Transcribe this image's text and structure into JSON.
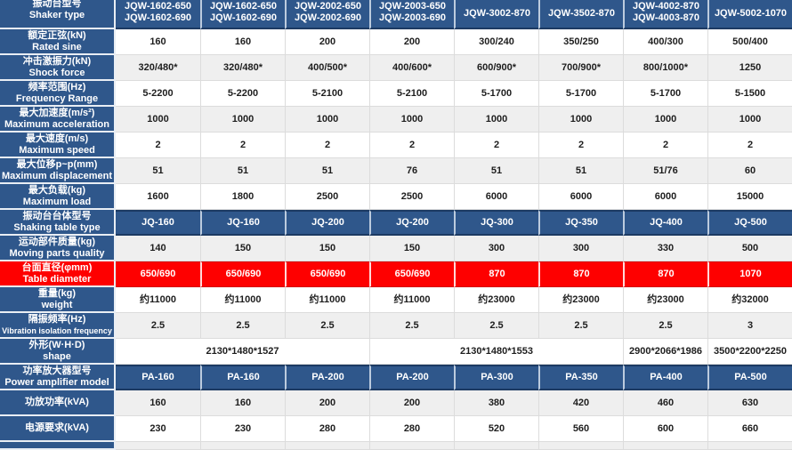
{
  "colors": {
    "steel_blue": "#2F578B",
    "dark_navy": "#1C3A63",
    "blue_divider": "#BCCBDE",
    "left_divider": "#E9EEF4",
    "red": "#FE0000",
    "row_gray": "#EFEFEF",
    "grid_line": "#DCDCDC",
    "text_dark": "#1E1E1E"
  },
  "header": {
    "label_cn": "振动台型号",
    "label_en": "Shaker type",
    "models": [
      [
        "JQW-1602-650",
        "JQW-1602-690"
      ],
      [
        "JQW-1602-650",
        "JQW-1602-690"
      ],
      [
        "JQW-2002-650",
        "JQW-2002-690"
      ],
      [
        "JQW-2003-650",
        "JQW-2003-690"
      ],
      [
        "JQW-3002-870"
      ],
      [
        "JQW-3502-870"
      ],
      [
        "JQW-4002-870",
        "JQW-4003-870"
      ],
      [
        "JQW-5002-1070"
      ]
    ]
  },
  "rows": [
    {
      "cn": "额定正弦(kN)",
      "en": "Rated sine",
      "style": "light",
      "cells": [
        "160",
        "160",
        "200",
        "200",
        "300/240",
        "350/250",
        "400/300",
        "500/400"
      ]
    },
    {
      "cn": "冲击激振力(kN)",
      "en": "Shock force",
      "style": "gray",
      "cells": [
        "320/480*",
        "320/480*",
        "400/500*",
        "400/600*",
        "600/900*",
        "700/900*",
        "800/1000*",
        "1250"
      ]
    },
    {
      "cn": "频率范围(Hz)",
      "en": "Frequency Range",
      "style": "light",
      "cells": [
        "5-2200",
        "5-2200",
        "5-2100",
        "5-2100",
        "5-1700",
        "5-1700",
        "5-1700",
        "5-1500"
      ]
    },
    {
      "cn": "最大加速度(m/s²)",
      "en": "Maximum acceleration",
      "style": "gray",
      "cells": [
        "1000",
        "1000",
        "1000",
        "1000",
        "1000",
        "1000",
        "1000",
        "1000"
      ]
    },
    {
      "cn": "最大速度(m/s)",
      "en": "Maximum speed",
      "style": "light",
      "cells": [
        "2",
        "2",
        "2",
        "2",
        "2",
        "2",
        "2",
        "2"
      ]
    },
    {
      "cn": "最大位移p~p(mm)",
      "en": "Maximum displacement",
      "style": "gray",
      "cells": [
        "51",
        "51",
        "51",
        "76",
        "51",
        "51",
        "51/76",
        "60"
      ]
    },
    {
      "cn": "最大负载(kg)",
      "en": "Maximum load",
      "style": "light",
      "cells": [
        "1600",
        "1800",
        "2500",
        "2500",
        "6000",
        "6000",
        "6000",
        "15000"
      ]
    },
    {
      "cn": "振动台台体型号",
      "en": "Shaking table type",
      "style": "blue",
      "cells": [
        "JQ-160",
        "JQ-160",
        "JQ-200",
        "JQ-200",
        "JQ-300",
        "JQ-350",
        "JQ-400",
        "JQ-500"
      ]
    },
    {
      "cn": "运动部件质量(kg)",
      "en": "Moving parts quality",
      "style": "gray",
      "cells": [
        "140",
        "150",
        "150",
        "150",
        "300",
        "300",
        "330",
        "500"
      ]
    },
    {
      "cn": "台面直径(φmm)",
      "en": "Table diameter",
      "style": "red",
      "cells": [
        "650/690",
        "650/690",
        "650/690",
        "650/690",
        "870",
        "870",
        "870",
        "1070"
      ]
    },
    {
      "cn": "重量(kg)",
      "en": "weight",
      "style": "light",
      "cells": [
        "约11000",
        "约11000",
        "约11000",
        "约11000",
        "约23000",
        "约23000",
        "约23000",
        "约32000"
      ]
    },
    {
      "cn": "隔振频率(Hz)",
      "en": "Vibration isolation frequency",
      "style": "gray",
      "cells": [
        "2.5",
        "2.5",
        "2.5",
        "2.5",
        "2.5",
        "2.5",
        "2.5",
        "3"
      ]
    },
    {
      "cn": "外形(W·H·D)",
      "en": "shape",
      "style": "light",
      "cells": [
        {
          "text": "2130*1480*1527",
          "span": 3
        },
        {
          "text": "2130*1480*1553",
          "span": 3
        },
        {
          "text": "2900*2066*1986",
          "span": 1
        },
        {
          "text": "3500*2200*2250",
          "span": 1
        }
      ]
    },
    {
      "cn": "功率放大器型号",
      "en": "Power amplifier model",
      "style": "blue",
      "cells": [
        "PA-160",
        "PA-160",
        "PA-200",
        "PA-200",
        "PA-300",
        "PA-350",
        "PA-400",
        "PA-500"
      ]
    },
    {
      "cn": "功放功率(kVA)",
      "en": "",
      "style": "gray",
      "cells": [
        "160",
        "160",
        "200",
        "200",
        "380",
        "420",
        "460",
        "630"
      ]
    },
    {
      "cn": "电源要求(kVA)",
      "en": "",
      "style": "light",
      "cells": [
        "230",
        "230",
        "280",
        "280",
        "520",
        "560",
        "600",
        "660"
      ]
    },
    {
      "cn": "",
      "en": "",
      "style": "partial",
      "cells": [
        "",
        "",
        "",
        "",
        "",
        "",
        "",
        ""
      ]
    }
  ]
}
